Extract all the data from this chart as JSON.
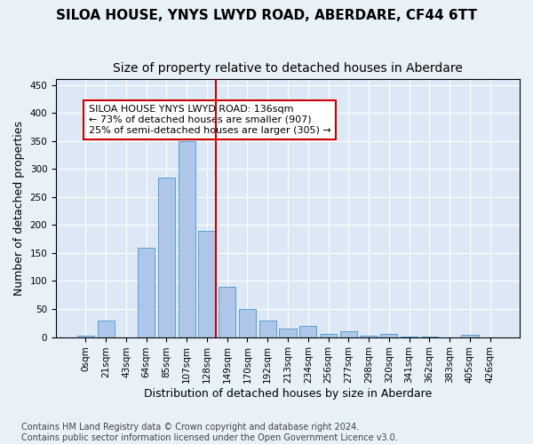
{
  "title": "SILOA HOUSE, YNYS LWYD ROAD, ABERDARE, CF44 6TT",
  "subtitle": "Size of property relative to detached houses in Aberdare",
  "xlabel": "Distribution of detached houses by size in Aberdare",
  "ylabel": "Number of detached properties",
  "bar_labels": [
    "0sqm",
    "21sqm",
    "43sqm",
    "64sqm",
    "85sqm",
    "107sqm",
    "128sqm",
    "149sqm",
    "170sqm",
    "192sqm",
    "213sqm",
    "234sqm",
    "256sqm",
    "277sqm",
    "298sqm",
    "320sqm",
    "341sqm",
    "362sqm",
    "383sqm",
    "405sqm",
    "426sqm"
  ],
  "bar_values": [
    3,
    30,
    0,
    160,
    285,
    350,
    190,
    90,
    50,
    30,
    15,
    20,
    6,
    11,
    2,
    5,
    1,
    1,
    0,
    4,
    0
  ],
  "bar_color": "#aec6e8",
  "bar_edge_color": "#5a9fd4",
  "vline_x_index": 6,
  "vline_color": "#cc0000",
  "annotation_text": "SILOA HOUSE YNYS LWYD ROAD: 136sqm\n← 73% of detached houses are smaller (907)\n25% of semi-detached houses are larger (305) →",
  "annotation_box_color": "#ffffff",
  "annotation_box_edge": "#cc0000",
  "ylim": [
    0,
    460
  ],
  "yticks": [
    0,
    50,
    100,
    150,
    200,
    250,
    300,
    350,
    400,
    450
  ],
  "bg_color": "#e8f0f8",
  "plot_bg_color": "#dce8f5",
  "footer": "Contains HM Land Registry data © Crown copyright and database right 2024.\nContains public sector information licensed under the Open Government Licence v3.0.",
  "title_fontsize": 11,
  "subtitle_fontsize": 10,
  "xlabel_fontsize": 9,
  "ylabel_fontsize": 9,
  "tick_fontsize": 7.5,
  "annotation_fontsize": 8,
  "footer_fontsize": 7
}
